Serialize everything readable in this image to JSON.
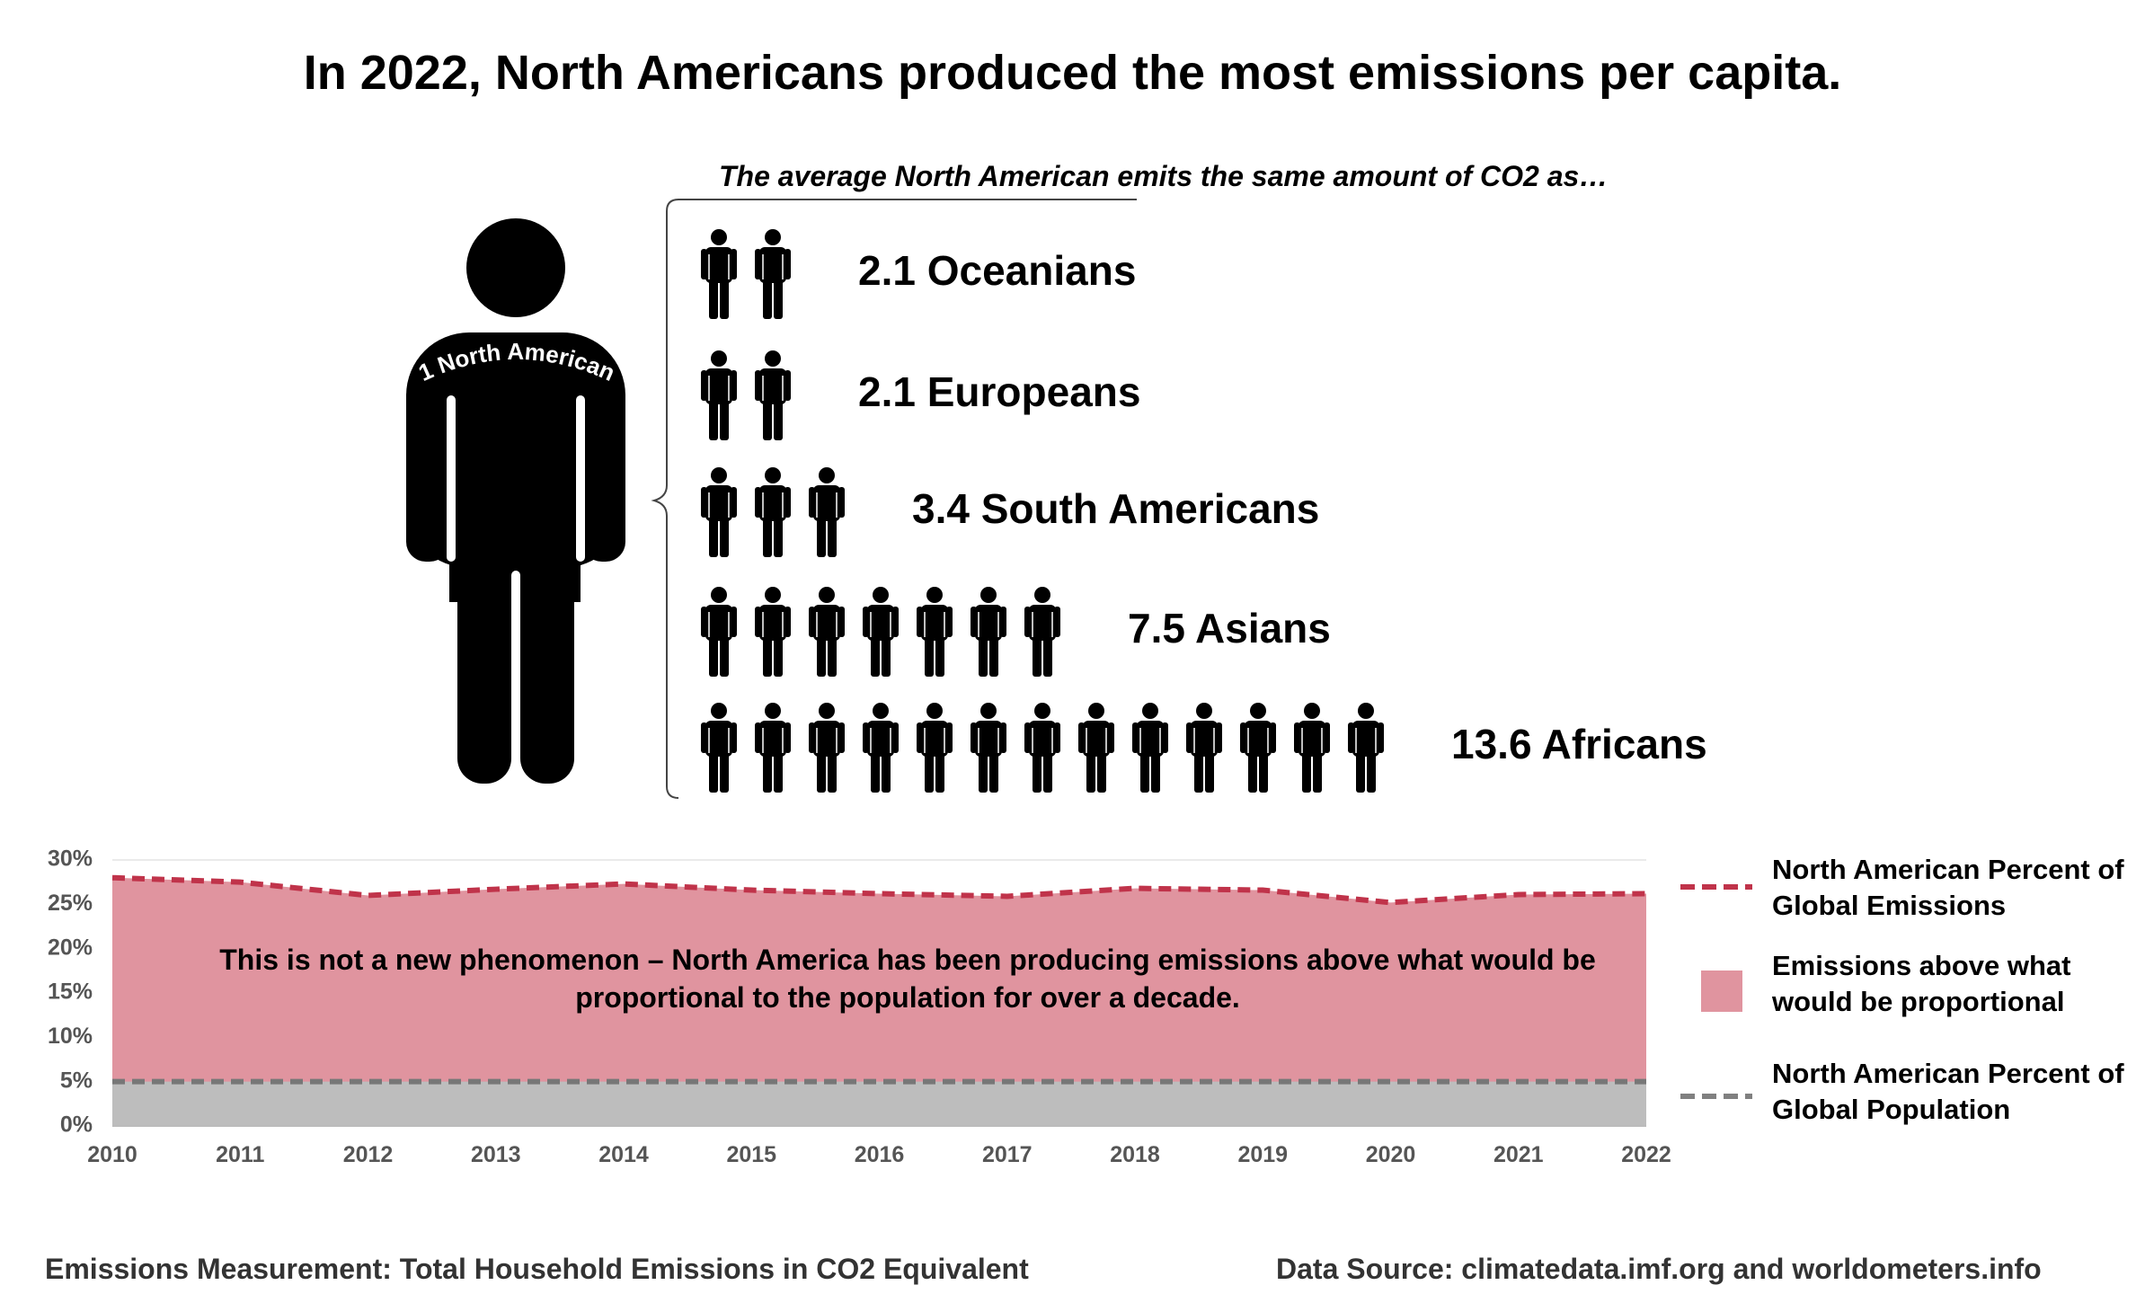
{
  "title": "In 2022, North Americans produced the most emissions per capita.",
  "subtitle": "The average North American emits the same amount of CO2 as…",
  "big_person_label": "1 North American",
  "comparison": [
    {
      "value": 2.1,
      "label": "2.1 Oceanians"
    },
    {
      "value": 2.1,
      "label": "2.1 Europeans"
    },
    {
      "value": 3.4,
      "label": "3.4 South Americans"
    },
    {
      "value": 7.5,
      "label": "7.5 Asians"
    },
    {
      "value": 13.6,
      "label": "13.6 Africans"
    }
  ],
  "chart_note": "This is not a new phenomenon – North America has been producing emissions above what would be proportional to the population for over a decade.",
  "chart_data": {
    "type": "area",
    "x": [
      2010,
      2011,
      2012,
      2013,
      2014,
      2015,
      2016,
      2017,
      2018,
      2019,
      2020,
      2021,
      2022
    ],
    "series": [
      {
        "name": "North American Percent of Global Emissions",
        "values": [
          28.0,
          27.5,
          26.0,
          26.7,
          27.3,
          26.6,
          26.2,
          25.9,
          26.8,
          26.6,
          25.2,
          26.1,
          26.2
        ]
      },
      {
        "name": "North American Percent of Global Population",
        "values": [
          5.0,
          5.0,
          5.0,
          5.0,
          5.0,
          5.0,
          5.0,
          5.0,
          5.0,
          5.0,
          5.0,
          5.0,
          5.0
        ]
      }
    ],
    "ylim": [
      0,
      30
    ],
    "yticks": [
      "0%",
      "5%",
      "10%",
      "15%",
      "20%",
      "25%",
      "30%"
    ],
    "grid": true,
    "legend": [
      {
        "label": "North American Percent of Global Emissions",
        "style": "dashed-line",
        "color": "#c0334a"
      },
      {
        "label": "Emissions above what would be proportional",
        "style": "area",
        "color": "#e0949f"
      },
      {
        "label": "North American Percent of Global Population",
        "style": "dashed-line",
        "color": "#808080"
      }
    ],
    "legend_position": "right"
  },
  "footer": {
    "left": "Emissions Measurement: Total Household Emissions in CO2 Equivalent",
    "right": "Data Source: climatedata.imf.org and worldometers.info"
  },
  "colors": {
    "emissions": "#c0334a",
    "emissions_fill": "#e0949f",
    "population": "#808080",
    "population_fill": "#bdbdbd"
  }
}
